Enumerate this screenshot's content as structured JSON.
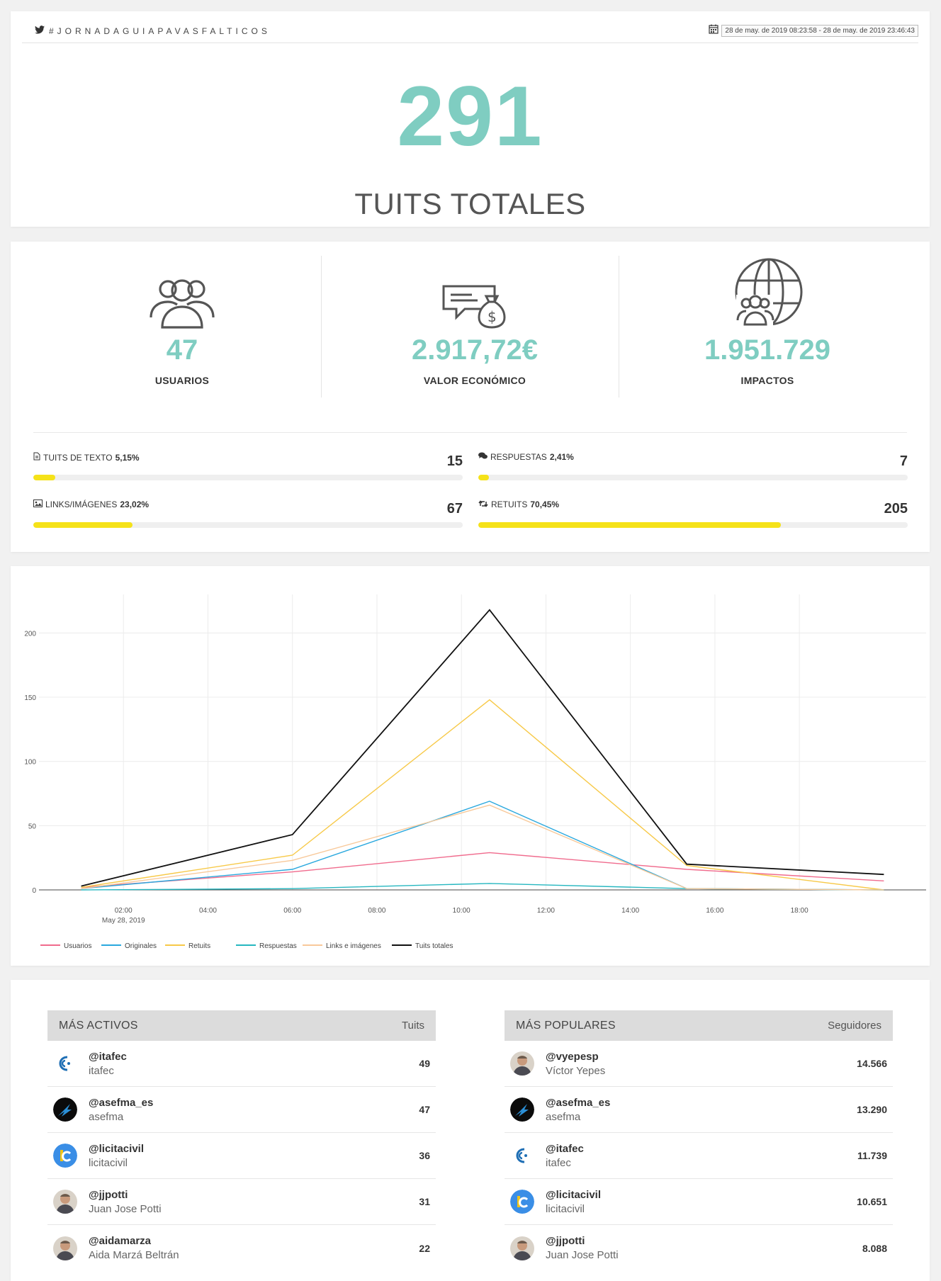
{
  "header": {
    "hashtag": "#JORNADAGUIAPAVASFALTICOS",
    "date_range": "28 de may. de 2019 08:23:58 - 28 de may. de 2019 23:46:43"
  },
  "hero": {
    "total": "291",
    "label": "TUITS TOTALES"
  },
  "metrics": {
    "users": {
      "value": "47",
      "label": "USUARIOS",
      "icon": "users-icon"
    },
    "economic": {
      "value": "2.917,72€",
      "label": "VALOR ECONÓMICO",
      "icon": "money-message-icon"
    },
    "impacts": {
      "value": "1.951.729",
      "label": "IMPACTOS",
      "icon": "globe-users-icon"
    }
  },
  "breakdown": {
    "text": {
      "label": "TUITS DE TEXTO",
      "pct_label": "5,15%",
      "value": "15",
      "pct": 5.15
    },
    "replies": {
      "label": "RESPUESTAS",
      "pct_label": "2,41%",
      "value": "7",
      "pct": 2.41
    },
    "links": {
      "label": "LINKS/IMÁGENES",
      "pct_label": "23,02%",
      "value": "67",
      "pct": 23.02
    },
    "retweets": {
      "label": "RETUITS",
      "pct_label": "70,45%",
      "value": "205",
      "pct": 70.45
    },
    "bar_color": "#f5e219"
  },
  "chart_data": {
    "type": "line",
    "x": [
      "2019-05-28 01:00",
      "2019-05-28 06:00",
      "2019-05-28 10:40",
      "2019-05-28 15:20",
      "2019-05-28 20:00"
    ],
    "x_ticks": [
      "02:00",
      "04:00",
      "06:00",
      "08:00",
      "10:00",
      "12:00",
      "14:00",
      "16:00",
      "18:00"
    ],
    "x_sublabel": "May 28, 2019",
    "y_ticks": [
      0,
      50,
      100,
      150,
      200
    ],
    "ylim": [
      0,
      230
    ],
    "grid": true,
    "legend_position": "bottom-left",
    "series": [
      {
        "name": "Usuarios",
        "color": "#f06b8d",
        "values": [
          2,
          14,
          29,
          16,
          7
        ]
      },
      {
        "name": "Originales",
        "color": "#2aa8de",
        "values": [
          1,
          16,
          69,
          1,
          0
        ]
      },
      {
        "name": "Retuits",
        "color": "#f7c948",
        "values": [
          2,
          27,
          148,
          19,
          0
        ]
      },
      {
        "name": "Respuestas",
        "color": "#26b7c0",
        "values": [
          0,
          1,
          5,
          1,
          0
        ]
      },
      {
        "name": "Links e imágenes",
        "color": "#f8c99a",
        "values": [
          1,
          23,
          66,
          1,
          0
        ]
      },
      {
        "name": "Tuits totales",
        "color": "#111111",
        "values": [
          3,
          43,
          218,
          20,
          12
        ]
      }
    ]
  },
  "active": {
    "title": "MÁS ACTIVOS",
    "col": "Tuits",
    "rows": [
      {
        "handle": "@itafec",
        "name": "itafec",
        "value": "49",
        "avatar": "itafec-logo-icon"
      },
      {
        "handle": "@asefma_es",
        "name": "asefma",
        "value": "47",
        "avatar": "asefma-logo-icon"
      },
      {
        "handle": "@licitacivil",
        "name": "licitacivil",
        "value": "36",
        "avatar": "licitacivil-logo-icon"
      },
      {
        "handle": "@jjpotti",
        "name": "Juan Jose Potti",
        "value": "31",
        "avatar": "person-avatar-icon"
      },
      {
        "handle": "@aidamarza",
        "name": "Aida Marzá Beltrán",
        "value": "22",
        "avatar": "person-avatar-icon"
      }
    ]
  },
  "popular": {
    "title": "MÁS POPULARES",
    "col": "Seguidores",
    "rows": [
      {
        "handle": "@vyepesp",
        "name": "Víctor Yepes",
        "value": "14.566",
        "avatar": "person-avatar-icon"
      },
      {
        "handle": "@asefma_es",
        "name": "asefma",
        "value": "13.290",
        "avatar": "asefma-logo-icon"
      },
      {
        "handle": "@itafec",
        "name": "itafec",
        "value": "11.739",
        "avatar": "itafec-logo-icon"
      },
      {
        "handle": "@licitacivil",
        "name": "licitacivil",
        "value": "10.651",
        "avatar": "licitacivil-logo-icon"
      },
      {
        "handle": "@jjpotti",
        "name": "Juan Jose Potti",
        "value": "8.088",
        "avatar": "person-avatar-icon"
      }
    ]
  },
  "colors": {
    "accent": "#7fcdc1",
    "bar": "#f5e219"
  }
}
